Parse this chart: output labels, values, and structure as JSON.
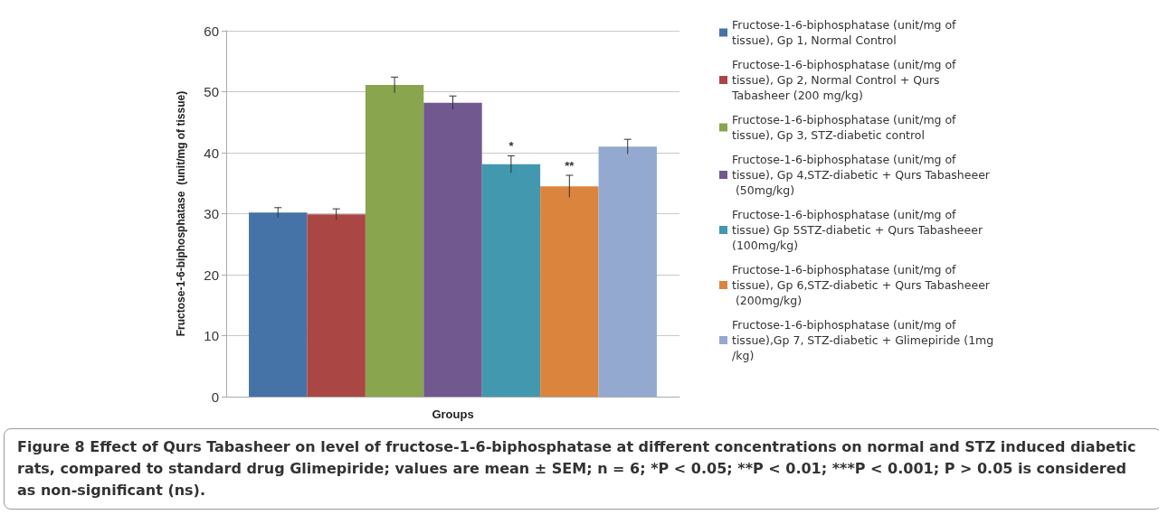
{
  "chart_data": {
    "type": "bar",
    "xlabel": "Groups",
    "ylabel": "Fructose-1-6-biphosphatase  (unit/mg of tissue)",
    "categories": [
      null
    ],
    "series": [
      {
        "name": "Fructose-1-6-biphosphatase (unit/mg of tissue), Gp 1, Normal Control",
        "color": "#4572a7",
        "values": [
          30.2
        ],
        "errors": [
          0.8
        ]
      },
      {
        "name": "Fructose-1-6-biphosphatase (unit/mg of tissue), Gp 2, Normal Control + Qurs Tabasheer (200 mg/kg)",
        "color": "#aa4643",
        "values": [
          29.9
        ],
        "errors": [
          0.9
        ]
      },
      {
        "name": "Fructose-1-6-biphosphatase (unit/mg of tissue), Gp 3, STZ-diabetic control",
        "color": "#89a54e",
        "values": [
          51.1
        ],
        "errors": [
          1.3
        ]
      },
      {
        "name": "Fructose-1-6-biphosphatase (unit/mg of tissue), Gp 4,STZ-diabetic + Qurs Tabasheeer (50mg/kg)",
        "color": "#71588f",
        "values": [
          48.2
        ],
        "errors": [
          1.1
        ]
      },
      {
        "name": "Fructose-1-6-biphosphatase (unit/mg of tissue) Gp 5STZ-diabetic + Qurs Tabasheeer (100mg/kg)",
        "color": "#4198af",
        "values": [
          38.1
        ],
        "errors": [
          1.4
        ],
        "value_labels": [
          "*"
        ]
      },
      {
        "name": "Fructose-1-6-biphosphatase (unit/mg of tissue), Gp 6,STZ-diabetic + Qurs Tabasheeer (200mg/kg)",
        "color": "#db843d",
        "values": [
          34.5
        ],
        "errors": [
          1.8
        ],
        "value_labels": [
          "**"
        ]
      },
      {
        "name": "Fructose-1-6-biphosphatase (unit/mg of tissue),Gp 7, STZ-diabetic + Glimepiride (1mg/kg)",
        "color": "#93a9cf",
        "values": [
          41.0
        ],
        "errors": [
          1.2
        ]
      }
    ],
    "ylim": [
      0,
      60
    ],
    "yticks": [
      0,
      10,
      20,
      30,
      40,
      50,
      60
    ],
    "grid": "y",
    "legend": "right",
    "annotations": [
      "Figure 8 Effect of Qurs Tabasheer on level of fructose-1-6-biphosphatase at different concentrations on normal and STZ induced diabetic rats, compared to standard drug Glimepiride; values are mean ± SEM; n = 6; *P < 0.05; **P < 0.01; ***P < 0.001; P > 0.05 is considered as non-significant (ns)."
    ]
  }
}
